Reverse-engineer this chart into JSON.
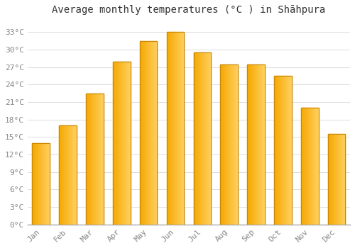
{
  "title": "Average monthly temperatures (°C ) in Shāhpura",
  "months": [
    "Jan",
    "Feb",
    "Mar",
    "Apr",
    "May",
    "Jun",
    "Jul",
    "Aug",
    "Sep",
    "Oct",
    "Nov",
    "Dec"
  ],
  "values": [
    14.0,
    17.0,
    22.5,
    28.0,
    31.5,
    33.0,
    29.5,
    27.5,
    27.5,
    25.5,
    20.0,
    15.5
  ],
  "bar_color_left": "#F5A800",
  "bar_color_right": "#FFD060",
  "bar_edge_color": "#C8880A",
  "background_color": "#FFFFFF",
  "plot_bg_color": "#FFFFFF",
  "grid_color": "#DDDDDD",
  "ylim": [
    0,
    35
  ],
  "yticks": [
    0,
    3,
    6,
    9,
    12,
    15,
    18,
    21,
    24,
    27,
    30,
    33
  ],
  "title_fontsize": 10,
  "tick_fontsize": 8,
  "tick_color": "#888888",
  "title_color": "#333333"
}
